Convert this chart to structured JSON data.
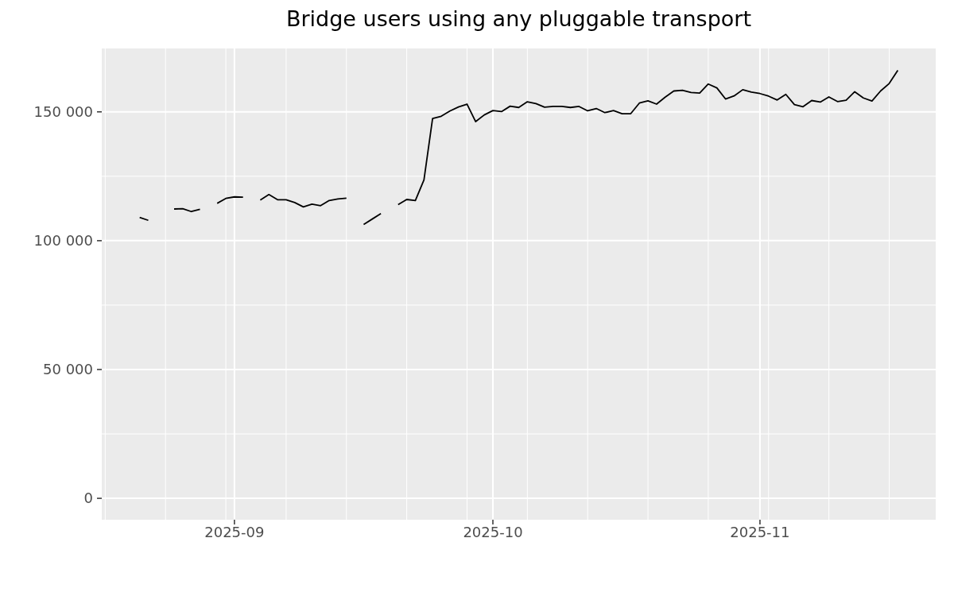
{
  "chart_data": {
    "type": "line",
    "title": "Bridge users using any pluggable transport",
    "x": [
      "2025-08-21",
      "2025-08-22",
      "2025-08-23",
      "2025-08-24",
      "2025-08-25",
      "2025-08-26",
      "2025-08-27",
      "2025-08-28",
      "2025-08-29",
      "2025-08-30",
      "2025-08-31",
      "2025-09-01",
      "2025-09-02",
      "2025-09-03",
      "2025-09-04",
      "2025-09-05",
      "2025-09-06",
      "2025-09-07",
      "2025-09-08",
      "2025-09-09",
      "2025-09-10",
      "2025-09-11",
      "2025-09-12",
      "2025-09-13",
      "2025-09-14",
      "2025-09-15",
      "2025-09-16",
      "2025-09-17",
      "2025-09-18",
      "2025-09-19",
      "2025-09-20",
      "2025-09-21",
      "2025-09-22",
      "2025-09-23",
      "2025-09-24",
      "2025-09-25",
      "2025-09-26",
      "2025-09-27",
      "2025-09-28",
      "2025-09-29",
      "2025-09-30",
      "2025-10-01",
      "2025-10-02",
      "2025-10-03",
      "2025-10-04",
      "2025-10-05",
      "2025-10-06",
      "2025-10-07",
      "2025-10-08",
      "2025-10-09",
      "2025-10-10",
      "2025-10-11",
      "2025-10-12",
      "2025-10-13",
      "2025-10-14",
      "2025-10-15",
      "2025-10-16",
      "2025-10-17",
      "2025-10-18",
      "2025-10-19",
      "2025-10-20",
      "2025-10-21",
      "2025-10-22",
      "2025-10-23",
      "2025-10-24",
      "2025-10-25",
      "2025-10-26",
      "2025-10-27",
      "2025-10-28",
      "2025-10-29",
      "2025-10-30",
      "2025-10-31",
      "2025-11-01",
      "2025-11-02",
      "2025-11-03",
      "2025-11-04",
      "2025-11-05",
      "2025-11-06",
      "2025-11-07",
      "2025-11-08",
      "2025-11-09",
      "2025-11-10",
      "2025-11-11",
      "2025-11-12",
      "2025-11-13",
      "2025-11-14",
      "2025-11-15",
      "2025-11-16",
      "2025-11-17"
    ],
    "values": [
      109000,
      107900,
      null,
      null,
      112300,
      112400,
      111300,
      112200,
      null,
      114500,
      116400,
      117000,
      116900,
      null,
      115800,
      117900,
      115900,
      115900,
      114800,
      113100,
      114200,
      113600,
      115600,
      116200,
      116500,
      null,
      106300,
      108400,
      110500,
      null,
      114000,
      116000,
      115600,
      123600,
      147400,
      148300,
      150300,
      151900,
      153000,
      146200,
      148800,
      150500,
      150100,
      152200,
      151700,
      153900,
      153200,
      151800,
      152100,
      152100,
      151700,
      152100,
      150400,
      151300,
      149700,
      150500,
      149300,
      149300,
      153400,
      154300,
      153000,
      155700,
      158100,
      158400,
      157500,
      157300,
      160800,
      159300,
      155000,
      156200,
      158600,
      157700,
      157100,
      156100,
      154600,
      156800,
      152800,
      152000,
      154400,
      153800,
      155800,
      154000,
      154500,
      157800,
      155400,
      154200,
      158100,
      161000,
      166100
    ],
    "color": "#000000",
    "line_style": "solid",
    "xlim": [
      "2025-08-16T14:24",
      "2025-11-21T09:36"
    ],
    "xticks": [
      {
        "value": "2025-08-17",
        "label": null
      },
      {
        "value": "2025-08-24",
        "label": null
      },
      {
        "value": "2025-08-31",
        "label": null
      },
      {
        "value": "2025-09-01",
        "label": "2025-09"
      },
      {
        "value": "2025-09-07",
        "label": null
      },
      {
        "value": "2025-09-14",
        "label": null
      },
      {
        "value": "2025-09-21",
        "label": null
      },
      {
        "value": "2025-09-28",
        "label": null
      },
      {
        "value": "2025-10-01",
        "label": "2025-10"
      },
      {
        "value": "2025-10-05",
        "label": null
      },
      {
        "value": "2025-10-12",
        "label": null
      },
      {
        "value": "2025-10-19",
        "label": null
      },
      {
        "value": "2025-10-26",
        "label": null
      },
      {
        "value": "2025-11-01",
        "label": "2025-11"
      },
      {
        "value": "2025-11-02",
        "label": null
      },
      {
        "value": "2025-11-09",
        "label": null
      },
      {
        "value": "2025-11-16",
        "label": null
      }
    ],
    "ylim": [
      -8300,
      174600
    ],
    "yticks": [
      0,
      {
        "value": 25000,
        "label": null
      },
      {
        "value": 50000,
        "label": "50 000"
      },
      {
        "value": 75000,
        "label": null
      },
      {
        "value": 100000,
        "label": "100 000"
      },
      {
        "value": 125000,
        "label": null
      },
      {
        "value": 150000,
        "label": "150 000"
      }
    ],
    "grid": true
  }
}
